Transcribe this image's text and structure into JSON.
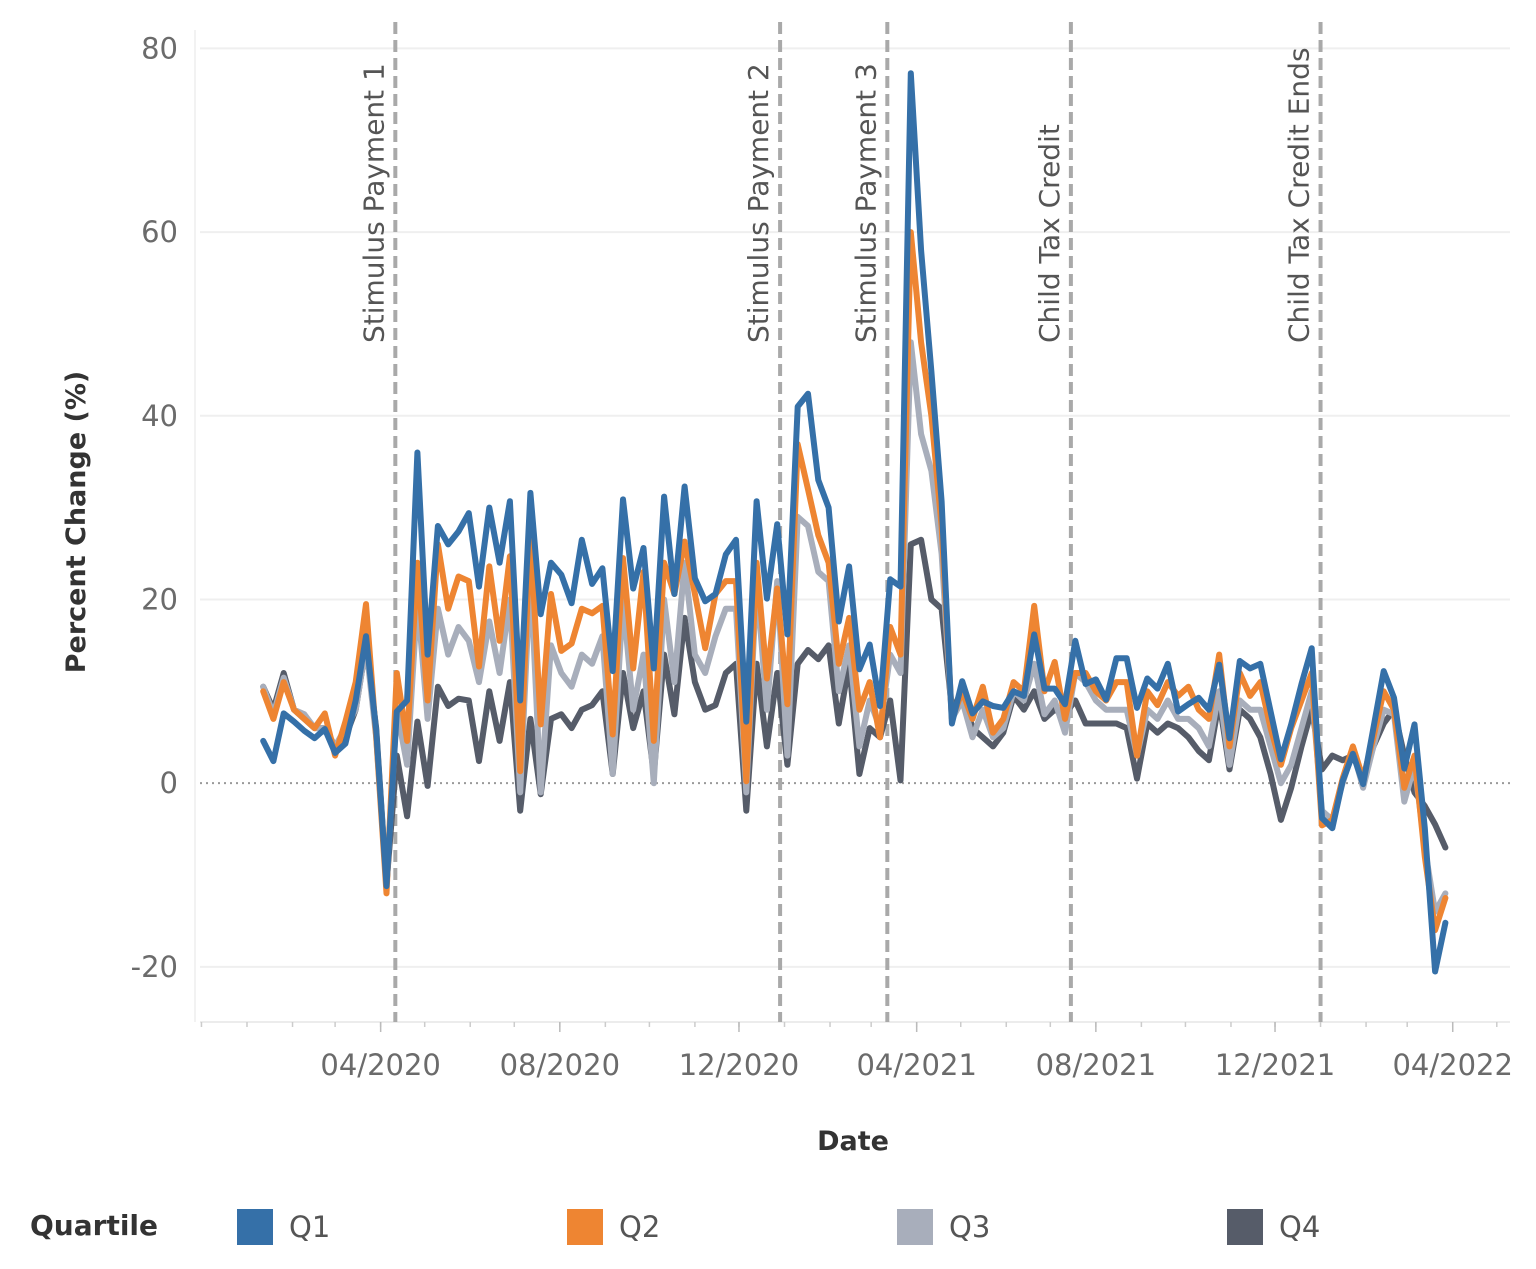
{
  "chart_data": {
    "type": "line",
    "title": "",
    "xlabel": "Date",
    "ylabel": "Percent Change (%)",
    "ylim": [
      -26,
      82
    ],
    "xlim": [
      "2019-11-30",
      "2022-05-10"
    ],
    "grid": true,
    "legend_title": "Quartile",
    "legend_position": "bottom",
    "y_ticks": [
      -20,
      0,
      20,
      40,
      60,
      80
    ],
    "x_ticks": [
      {
        "date": "2020-04-01",
        "label": "04/2020"
      },
      {
        "date": "2020-08-01",
        "label": "08/2020"
      },
      {
        "date": "2020-12-01",
        "label": "12/2020"
      },
      {
        "date": "2021-04-01",
        "label": "04/2021"
      },
      {
        "date": "2021-08-01",
        "label": "08/2021"
      },
      {
        "date": "2021-12-01",
        "label": "12/2021"
      },
      {
        "date": "2022-04-01",
        "label": "04/2022"
      }
    ],
    "events": [
      {
        "date": "2020-04-11",
        "label": "Stimulus Payment 1"
      },
      {
        "date": "2020-12-29",
        "label": "Stimulus Payment 2"
      },
      {
        "date": "2021-03-12",
        "label": "Stimulus Payment 3"
      },
      {
        "date": "2021-07-15",
        "label": "Child Tax Credit"
      },
      {
        "date": "2022-01-01",
        "label": "Child Tax Credit Ends"
      }
    ],
    "x": [
      "2020-01-12",
      "2020-01-19",
      "2020-01-26",
      "2020-02-02",
      "2020-02-09",
      "2020-02-16",
      "2020-02-23",
      "2020-03-01",
      "2020-03-08",
      "2020-03-15",
      "2020-03-22",
      "2020-03-29",
      "2020-04-05",
      "2020-04-12",
      "2020-04-19",
      "2020-04-26",
      "2020-05-03",
      "2020-05-10",
      "2020-05-17",
      "2020-05-24",
      "2020-05-31",
      "2020-06-07",
      "2020-06-14",
      "2020-06-21",
      "2020-06-28",
      "2020-07-05",
      "2020-07-12",
      "2020-07-19",
      "2020-07-26",
      "2020-08-02",
      "2020-08-09",
      "2020-08-16",
      "2020-08-23",
      "2020-08-30",
      "2020-09-06",
      "2020-09-13",
      "2020-09-20",
      "2020-09-27",
      "2020-10-04",
      "2020-10-11",
      "2020-10-18",
      "2020-10-25",
      "2020-11-01",
      "2020-11-08",
      "2020-11-15",
      "2020-11-22",
      "2020-11-29",
      "2020-12-06",
      "2020-12-13",
      "2020-12-20",
      "2020-12-27",
      "2021-01-03",
      "2021-01-10",
      "2021-01-17",
      "2021-01-24",
      "2021-01-31",
      "2021-02-07",
      "2021-02-14",
      "2021-02-21",
      "2021-02-28",
      "2021-03-07",
      "2021-03-14",
      "2021-03-21",
      "2021-03-28",
      "2021-04-04",
      "2021-04-11",
      "2021-04-18",
      "2021-04-25",
      "2021-05-02",
      "2021-05-09",
      "2021-05-16",
      "2021-05-23",
      "2021-05-30",
      "2021-06-06",
      "2021-06-13",
      "2021-06-20",
      "2021-06-27",
      "2021-07-04",
      "2021-07-11",
      "2021-07-18",
      "2021-07-25",
      "2021-08-01",
      "2021-08-08",
      "2021-08-15",
      "2021-08-22",
      "2021-08-29",
      "2021-09-05",
      "2021-09-12",
      "2021-09-19",
      "2021-09-26",
      "2021-10-03",
      "2021-10-10",
      "2021-10-17",
      "2021-10-24",
      "2021-10-31",
      "2021-11-07",
      "2021-11-14",
      "2021-11-21",
      "2021-11-28",
      "2021-12-05",
      "2021-12-12",
      "2021-12-19",
      "2021-12-26",
      "2022-01-02",
      "2022-01-09",
      "2022-01-16",
      "2022-01-23",
      "2022-01-30",
      "2022-02-06",
      "2022-02-13",
      "2022-02-20",
      "2022-02-27",
      "2022-03-06",
      "2022-03-13",
      "2022-03-20",
      "2022-03-27"
    ],
    "series": [
      {
        "name": "Q1",
        "color": "#3570a8",
        "values": [
          4.6,
          2.4,
          7.6,
          6.7,
          5.7,
          4.9,
          5.9,
          3.3,
          4.3,
          9,
          16,
          5.7,
          -11.2,
          7.8,
          9,
          36,
          14,
          28,
          26,
          27.4,
          29.4,
          21.4,
          30,
          24,
          30.7,
          9,
          31.6,
          18.4,
          24,
          22.7,
          19.6,
          26.5,
          21.7,
          23.4,
          12.2,
          30.9,
          21.2,
          25.6,
          12.5,
          31.2,
          20.6,
          32.3,
          22.3,
          19.8,
          20.6,
          24.9,
          26.5,
          6.7,
          30.7,
          20.1,
          28.2,
          16.2,
          41,
          42.4,
          33,
          30,
          17.6,
          23.6,
          12.4,
          15.1,
          8.4,
          22.2,
          21.4,
          77.3,
          58,
          44.8,
          30.7,
          6.5,
          11.1,
          7.6,
          8.9,
          8.4,
          8.2,
          10,
          9.5,
          16.2,
          10.3,
          10.3,
          8.6,
          15.5,
          10.8,
          11.3,
          9.1,
          13.6,
          13.6,
          8.2,
          11.4,
          10.3,
          13,
          7.8,
          8.6,
          9.3,
          8,
          12.9,
          4.9,
          13.3,
          12.5,
          13,
          7.8,
          2.6,
          6.4,
          10.8,
          14.7,
          -3.8,
          -4.9,
          0.2,
          3.2,
          -0.1,
          6,
          12.2,
          9.3,
          1.6,
          6.4,
          -4.9,
          -20.5,
          -15.2
        ]
      },
      {
        "name": "Q2",
        "color": "#ee8532",
        "values": [
          10,
          7,
          11,
          8,
          7,
          6,
          7.6,
          3,
          6.7,
          11,
          19.5,
          5,
          -12,
          12,
          4.6,
          24,
          9,
          26,
          19,
          22.5,
          22,
          12.7,
          23.6,
          15.5,
          24.7,
          1.3,
          27.4,
          6.4,
          20.6,
          14.4,
          15.2,
          19,
          18.5,
          19.3,
          5.3,
          24.5,
          12.5,
          23,
          4.6,
          24,
          20.6,
          26.3,
          20.6,
          14.7,
          20.6,
          22,
          22,
          0.2,
          24,
          11.4,
          21.2,
          8.6,
          36.9,
          32,
          27,
          24,
          13,
          18,
          8,
          11,
          5,
          17,
          14,
          60,
          48,
          40,
          28,
          7,
          10,
          7,
          10.5,
          5.5,
          7,
          11,
          10,
          19.3,
          10,
          13.2,
          7,
          12,
          12,
          10,
          9,
          11,
          11,
          3,
          10,
          8.5,
          11,
          9.5,
          10.5,
          8,
          7,
          14,
          4,
          12,
          9.5,
          11,
          6,
          2,
          6,
          9,
          12,
          -4.6,
          -4,
          0.5,
          4,
          0.5,
          5,
          10,
          8,
          -0.5,
          3,
          -8,
          -16,
          -12.5
        ]
      },
      {
        "name": "Q3",
        "color": "#a8aebb",
        "values": [
          10.5,
          7.5,
          11.5,
          8,
          7.5,
          6,
          6,
          4,
          6,
          8,
          15,
          5,
          -11,
          8,
          2,
          20,
          7,
          19,
          14,
          17,
          15.5,
          11,
          17.6,
          12,
          20,
          -1,
          23,
          -1,
          15,
          12,
          10.5,
          14,
          13,
          16,
          1,
          20,
          8,
          14,
          0,
          20,
          11,
          24,
          14,
          12,
          16,
          19,
          19,
          -1,
          22,
          8,
          22,
          3,
          29,
          28,
          23,
          22,
          10,
          15,
          4,
          9,
          6,
          14,
          12,
          48,
          38,
          34,
          25,
          7,
          9,
          5,
          8,
          5,
          6,
          10,
          9,
          13,
          7.5,
          9,
          5.5,
          12,
          11,
          9,
          8,
          8,
          8,
          3,
          8,
          7,
          9,
          7,
          7,
          6,
          4,
          10,
          2,
          9,
          8,
          8,
          4,
          0,
          2,
          6,
          10,
          -3,
          -4,
          0,
          3.5,
          -0.5,
          4,
          8,
          7.5,
          -2,
          2,
          -7,
          -14,
          -12
        ]
      },
      {
        "name": "Q4",
        "color": "#565c69",
        "values": [
          10.5,
          8,
          12,
          8,
          7,
          6,
          6,
          4,
          5,
          8,
          15,
          6,
          -11,
          3,
          -3.6,
          6.7,
          -0.3,
          10.5,
          8.4,
          9.2,
          9,
          2.4,
          10,
          4.6,
          11,
          -3,
          7,
          -1.2,
          7,
          7.5,
          6,
          8,
          8.5,
          10,
          1,
          12,
          6,
          10,
          1,
          14,
          7.5,
          18,
          11,
          8,
          8.5,
          12,
          13,
          -3,
          13,
          4,
          12,
          2,
          13,
          14.5,
          13.5,
          15,
          6.5,
          13,
          1,
          6,
          5,
          9,
          0.3,
          26,
          26.5,
          20,
          19,
          8,
          10,
          6,
          5,
          4,
          5.5,
          9.5,
          8,
          10,
          7,
          8,
          7.5,
          9,
          6.5,
          6.5,
          6.5,
          6.5,
          6,
          0.5,
          6.5,
          5.5,
          6.5,
          6,
          5,
          3.5,
          2.5,
          9,
          1.5,
          8,
          7,
          5,
          1,
          -4,
          -0.5,
          4,
          8,
          1.5,
          3,
          2.5,
          3,
          0.5,
          4,
          6.5,
          8,
          3,
          -1,
          -2.5,
          -4.5,
          -7
        ]
      }
    ]
  }
}
